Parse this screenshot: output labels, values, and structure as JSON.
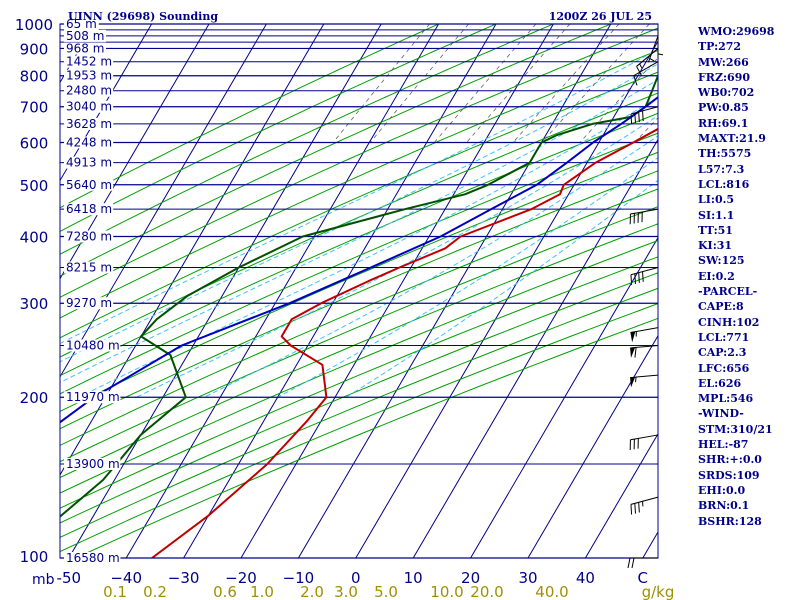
{
  "header": {
    "station": "UINN (29698) Sounding",
    "time": "1200Z 26 JUL 25"
  },
  "indices": [
    "WMO:29698",
    "TP:272",
    "MW:266",
    "FRZ:690",
    "WB0:702",
    "PW:0.85",
    "RH:69.1",
    "MAXT:21.9",
    "TH:5575",
    "L57:7.3",
    "LCL:816",
    "LI:0.5",
    "SI:1.1",
    "TT:51",
    "KI:31",
    "SW:125",
    "EI:0.2",
    "-PARCEL-",
    "CAPE:8",
    "CINH:102",
    "LCL:771",
    "CAP:2.3",
    "LFC:656",
    "EL:626",
    "MPL:546",
    "-WIND-",
    "STM:310/21",
    "HEL:-87",
    "SHR:+:0.0",
    "SRDS:109",
    "EHI:0.0",
    "BRN:0.1",
    "BSHR:128"
  ],
  "colors": {
    "isobar": "#00008b",
    "isotherm": "#00008b",
    "dry_adiabat": "#00a000",
    "moist_adiabat": "#40c0ff",
    "mixing_ratio": "#606060",
    "temperature": "#c00000",
    "dewpoint": "#005000",
    "parcel": "#0000c0",
    "axis_text": "#00008b",
    "mix_text": "#a09000"
  },
  "chart_data": {
    "type": "line",
    "x_unit_label": "C",
    "y_unit_label": "mb",
    "ylim": [
      1000,
      100
    ],
    "xlim": [
      -50,
      50
    ],
    "pressure_ticks": [
      100,
      200,
      300,
      400,
      500,
      600,
      700,
      800,
      900,
      1000
    ],
    "pressure_levels": [
      100,
      150,
      200,
      250,
      300,
      350,
      400,
      450,
      500,
      550,
      600,
      650,
      700,
      750,
      800,
      850,
      900,
      925,
      950,
      975,
      1000
    ],
    "temp_ticks": [
      -50,
      -40,
      -30,
      -20,
      -10,
      0,
      10,
      20,
      30,
      40,
      50
    ],
    "temp_tick_labels": [
      "-50",
      "−40",
      "−30",
      "−20",
      "−10",
      "0",
      "10",
      "20",
      "30",
      "40",
      "C"
    ],
    "height_labels": [
      {
        "p": 100,
        "text": "16580 m"
      },
      {
        "p": 150,
        "text": "13900 m"
      },
      {
        "p": 200,
        "text": "11970 m"
      },
      {
        "p": 250,
        "text": "10480 m"
      },
      {
        "p": 300,
        "text": "9270 m"
      },
      {
        "p": 350,
        "text": "8215 m"
      },
      {
        "p": 400,
        "text": "7280 m"
      },
      {
        "p": 450,
        "text": "6418 m"
      },
      {
        "p": 500,
        "text": "5640 m"
      },
      {
        "p": 550,
        "text": "4913 m"
      },
      {
        "p": 600,
        "text": "4248 m"
      },
      {
        "p": 650,
        "text": "3628 m"
      },
      {
        "p": 700,
        "text": "3040 m"
      },
      {
        "p": 750,
        "text": "2480 m"
      },
      {
        "p": 800,
        "text": "1953 m"
      },
      {
        "p": 850,
        "text": "1452 m"
      },
      {
        "p": 900,
        "text": "968 m"
      },
      {
        "p": 950,
        "text": "508 m"
      },
      {
        "p": 1000,
        "text": "65 m"
      }
    ],
    "mixing_ratio_labels": [
      "0.1",
      "0.2",
      "0.6",
      "1.0",
      "2.0",
      "3.0",
      "5.0",
      "10.0",
      "20.0",
      "40.0",
      "g/kg"
    ],
    "series": [
      {
        "name": "temperature",
        "points": [
          [
            950,
            17
          ],
          [
            940,
            19.5
          ],
          [
            900,
            17.5
          ],
          [
            850,
            14
          ],
          [
            800,
            13
          ],
          [
            780,
            14
          ],
          [
            700,
            13.5
          ],
          [
            670,
            11.5
          ],
          [
            600,
            6
          ],
          [
            550,
            1.5
          ],
          [
            500,
            -1.8
          ],
          [
            480,
            -1.5
          ],
          [
            450,
            -5
          ],
          [
            400,
            -14.5
          ],
          [
            380,
            -16
          ],
          [
            350,
            -22
          ],
          [
            330,
            -26
          ],
          [
            300,
            -32
          ],
          [
            280,
            -35.5
          ],
          [
            260,
            -35.5
          ],
          [
            250,
            -33
          ],
          [
            230,
            -25.5
          ],
          [
            200,
            -21.5
          ],
          [
            180,
            -22.5
          ],
          [
            150,
            -25
          ],
          [
            120,
            -30
          ],
          [
            100,
            -35.5
          ]
        ]
      },
      {
        "name": "dewpoint",
        "points": [
          [
            950,
            5
          ],
          [
            900,
            4.5
          ],
          [
            850,
            4
          ],
          [
            800,
            3.5
          ],
          [
            750,
            4
          ],
          [
            700,
            4.5
          ],
          [
            670,
            3
          ],
          [
            650,
            -3
          ],
          [
            620,
            -8
          ],
          [
            600,
            -10
          ],
          [
            550,
            -10
          ],
          [
            500,
            -15
          ],
          [
            480,
            -18
          ],
          [
            450,
            -27
          ],
          [
            400,
            -42
          ],
          [
            350,
            -50
          ],
          [
            310,
            -56
          ],
          [
            280,
            -59
          ],
          [
            260,
            -60
          ],
          [
            240,
            -53
          ],
          [
            200,
            -46
          ],
          [
            170,
            -50
          ],
          [
            140,
            -52
          ],
          [
            100,
            -60
          ]
        ]
      },
      {
        "name": "parcel",
        "points": [
          [
            945,
            17.5
          ],
          [
            900,
            13.5
          ],
          [
            816,
            9
          ],
          [
            800,
            8.5
          ],
          [
            750,
            6.5
          ],
          [
            700,
            4.5
          ],
          [
            650,
            2
          ],
          [
            600,
            -1
          ],
          [
            550,
            -3.5
          ],
          [
            500,
            -6.5
          ],
          [
            450,
            -12
          ],
          [
            400,
            -18
          ],
          [
            350,
            -27
          ],
          [
            300,
            -37.5
          ],
          [
            250,
            -52
          ],
          [
            200,
            -62
          ],
          [
            150,
            -71
          ],
          [
            120,
            -77
          ],
          [
            100,
            -81
          ]
        ]
      }
    ],
    "wind_barbs": [
      {
        "p": 975,
        "dir": 180,
        "spd": 5
      },
      {
        "p": 950,
        "dir": 200,
        "spd": 5
      },
      {
        "p": 900,
        "dir": 230,
        "spd": 15
      },
      {
        "p": 850,
        "dir": 240,
        "spd": 10
      },
      {
        "p": 700,
        "dir": 255,
        "spd": 40
      },
      {
        "p": 450,
        "dir": 260,
        "spd": 40
      },
      {
        "p": 350,
        "dir": 255,
        "spd": 40
      },
      {
        "p": 270,
        "dir": 260,
        "spd": 55
      },
      {
        "p": 250,
        "dir": 265,
        "spd": 60
      },
      {
        "p": 220,
        "dir": 265,
        "spd": 55
      },
      {
        "p": 170,
        "dir": 260,
        "spd": 30
      },
      {
        "p": 130,
        "dir": 255,
        "spd": 35
      },
      {
        "p": 100,
        "dir": 270,
        "spd": 20
      }
    ]
  }
}
